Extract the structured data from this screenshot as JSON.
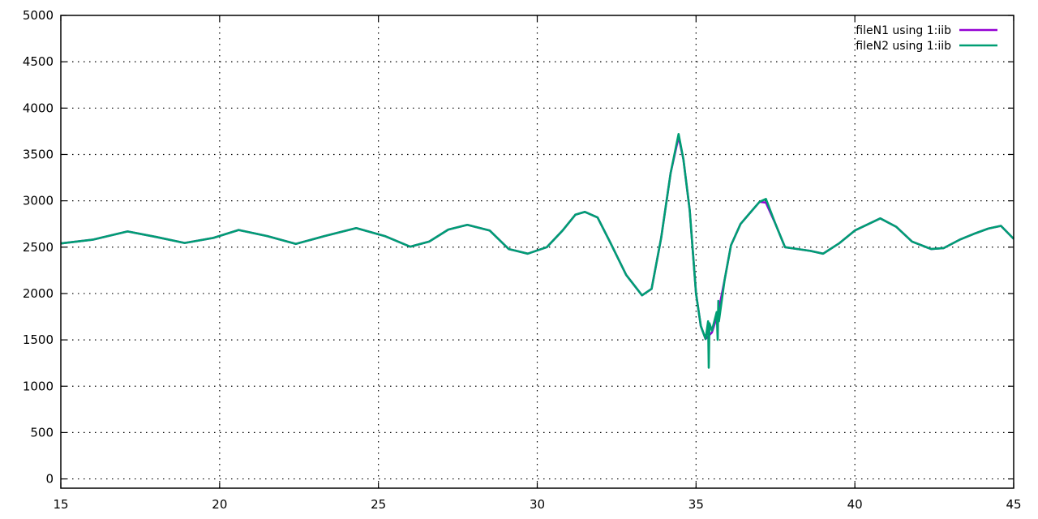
{
  "chart_data": {
    "type": "line",
    "title": "",
    "xlabel": "",
    "ylabel": "",
    "xlim": [
      15,
      45
    ],
    "ylim": [
      -100,
      5000
    ],
    "xticks": [
      15,
      20,
      25,
      30,
      35,
      40,
      45
    ],
    "yticks": [
      0,
      500,
      1000,
      1500,
      2000,
      2500,
      3000,
      3500,
      4000,
      4500,
      5000
    ],
    "grid": true,
    "legend_position": "top-right",
    "series": [
      {
        "name": "fileN1 using 1:iib",
        "color": "#9400d3",
        "x": [
          15,
          16,
          17.1,
          18,
          18.9,
          19.8,
          20.6,
          21.5,
          22.4,
          23.3,
          24.3,
          25.2,
          26,
          26.6,
          27.2,
          27.8,
          28.5,
          29.1,
          29.7,
          30.3,
          30.8,
          31.2,
          31.5,
          31.9,
          32.3,
          32.8,
          33.3,
          33.6,
          33.9,
          34.2,
          34.45,
          34.6,
          34.8,
          35,
          35.15,
          35.3,
          35.5,
          35.7,
          35.9,
          36.1,
          36.4,
          36.7,
          37,
          37.2,
          37.5,
          37.8,
          38.2,
          38.6,
          39,
          39.5,
          40,
          40.8,
          41.3,
          41.8,
          42.4,
          42.8,
          43.3,
          43.8,
          44.2,
          44.6,
          45
        ],
        "y": [
          2540,
          2580,
          2670,
          2610,
          2545,
          2600,
          2685,
          2620,
          2535,
          2620,
          2705,
          2620,
          2505,
          2560,
          2690,
          2740,
          2680,
          2480,
          2430,
          2500,
          2680,
          2850,
          2880,
          2820,
          2550,
          2200,
          1980,
          2050,
          2600,
          3300,
          3690,
          3450,
          2900,
          2000,
          1650,
          1510,
          1580,
          1800,
          2150,
          2520,
          2750,
          2870,
          2990,
          2980,
          2750,
          2500,
          2480,
          2460,
          2430,
          2540,
          2680,
          2810,
          2720,
          2560,
          2480,
          2490,
          2580,
          2650,
          2700,
          2730,
          2590
        ]
      },
      {
        "name": "fileN2 using 1:iib",
        "color": "#009e73",
        "x": [
          15,
          16,
          17.1,
          18,
          18.9,
          19.8,
          20.6,
          21.5,
          22.4,
          23.3,
          24.3,
          25.2,
          26,
          26.6,
          27.2,
          27.8,
          28.5,
          29.1,
          29.7,
          30.3,
          30.8,
          31.2,
          31.5,
          31.9,
          32.3,
          32.8,
          33.3,
          33.6,
          33.9,
          34.2,
          34.45,
          34.6,
          34.8,
          35,
          35.15,
          35.3,
          35.38,
          35.4,
          35.42,
          35.5,
          35.65,
          35.68,
          35.7,
          35.72,
          35.9,
          36.1,
          36.4,
          36.7,
          37,
          37.2,
          37.5,
          37.8,
          38.2,
          38.6,
          39,
          39.5,
          40,
          40.8,
          41.3,
          41.8,
          42.4,
          42.8,
          43.3,
          43.8,
          44.2,
          44.6,
          45
        ],
        "y": [
          2540,
          2580,
          2670,
          2610,
          2545,
          2600,
          2685,
          2620,
          2535,
          2620,
          2705,
          2620,
          2505,
          2560,
          2690,
          2740,
          2680,
          2480,
          2430,
          2500,
          2680,
          2850,
          2880,
          2820,
          2550,
          2200,
          1980,
          2050,
          2600,
          3300,
          3720,
          3450,
          2900,
          2000,
          1650,
          1510,
          1700,
          1200,
          1680,
          1600,
          1800,
          1500,
          1920,
          1700,
          2150,
          2520,
          2750,
          2870,
          2990,
          3020,
          2750,
          2500,
          2480,
          2460,
          2430,
          2540,
          2680,
          2810,
          2720,
          2560,
          2480,
          2490,
          2580,
          2650,
          2700,
          2730,
          2590
        ]
      }
    ]
  }
}
